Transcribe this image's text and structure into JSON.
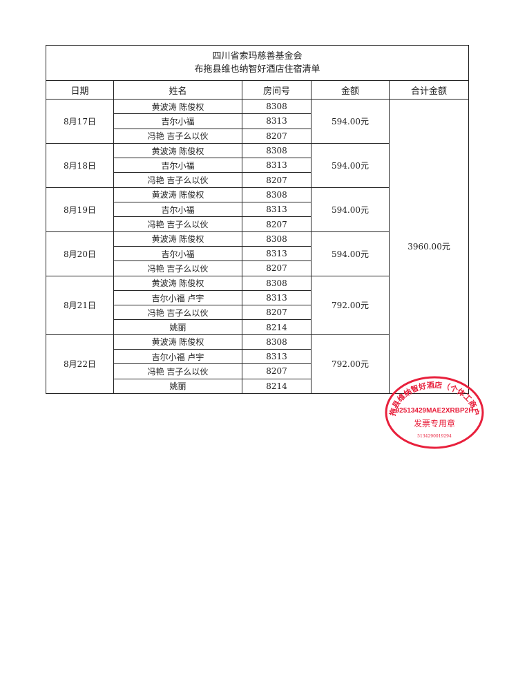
{
  "title": {
    "line1": "四川省索玛慈善基金会",
    "line2": "布拖县维也纳智好酒店住宿清单"
  },
  "headers": [
    "日期",
    "姓名",
    "房间号",
    "金额",
    "合计金额"
  ],
  "groups": [
    {
      "date": "8月17日",
      "amount": "594.00元",
      "rows": [
        [
          "黄波涛 陈俊权",
          "8308"
        ],
        [
          "吉尔小福",
          "8313"
        ],
        [
          "冯艳 吉子么以伙",
          "8207"
        ]
      ]
    },
    {
      "date": "8月18日",
      "amount": "594.00元",
      "rows": [
        [
          "黄波涛 陈俊权",
          "8308"
        ],
        [
          "吉尔小福",
          "8313"
        ],
        [
          "冯艳 吉子么以伙",
          "8207"
        ]
      ]
    },
    {
      "date": "8月19日",
      "amount": "594.00元",
      "rows": [
        [
          "黄波涛 陈俊权",
          "8308"
        ],
        [
          "吉尔小福",
          "8313"
        ],
        [
          "冯艳 吉子么以伙",
          "8207"
        ]
      ]
    },
    {
      "date": "8月20日",
      "amount": "594.00元",
      "rows": [
        [
          "黄波涛 陈俊权",
          "8308"
        ],
        [
          "吉尔小福",
          "8313"
        ],
        [
          "冯艳 吉子么以伙",
          "8207"
        ]
      ]
    },
    {
      "date": "8月21日",
      "amount": "792.00元",
      "rows": [
        [
          "黄波涛 陈俊权",
          "8308"
        ],
        [
          "吉尔小福 卢宇",
          "8313"
        ],
        [
          "冯艳 吉子么以伙",
          "8207"
        ],
        [
          "姚丽",
          "8214"
        ]
      ]
    },
    {
      "date": "8月22日",
      "amount": "792.00元",
      "rows": [
        [
          "黄波涛 陈俊权",
          "8308"
        ],
        [
          "吉尔小福 卢宇",
          "8313"
        ],
        [
          "冯艳 吉子么以伙",
          "8207"
        ],
        [
          "姚丽",
          "8214"
        ]
      ]
    }
  ],
  "total": "3960.00元",
  "stamp": {
    "name": "布拖县维纳智好酒店（个体工商户）",
    "code": "92513429MAE2XRBP2H",
    "label": "发票专用章",
    "number": "5134290019294",
    "color": "#e8203c"
  }
}
